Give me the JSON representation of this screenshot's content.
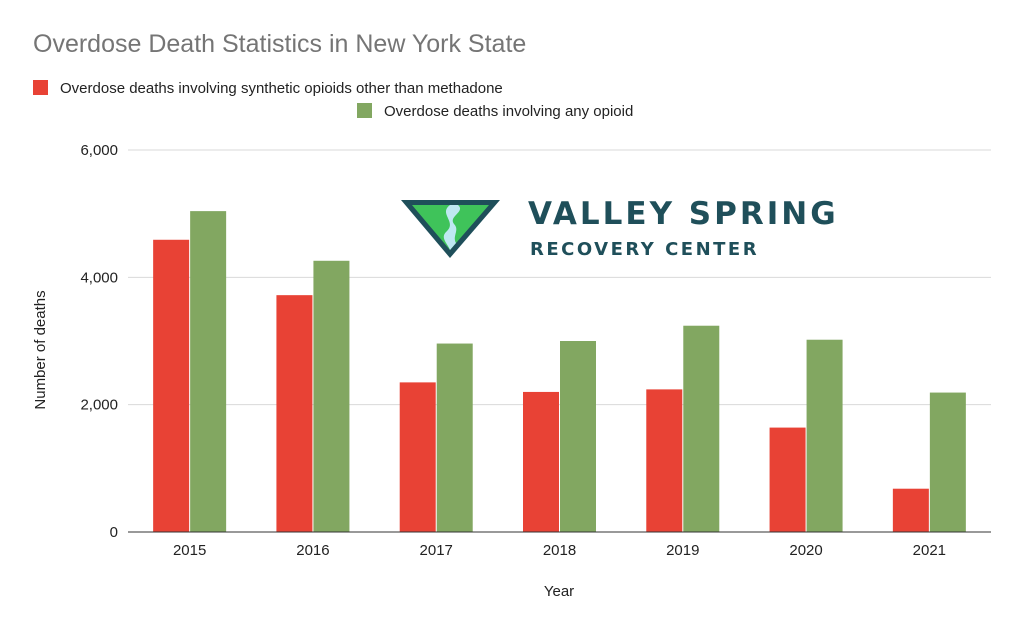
{
  "chart_data": {
    "type": "bar",
    "title": "Overdose Death Statistics in New York State",
    "xlabel": "Year",
    "ylabel": "Number of deaths",
    "categories": [
      "2015",
      "2016",
      "2017",
      "2018",
      "2019",
      "2020",
      "2021"
    ],
    "series": [
      {
        "name": "Overdose deaths involving synthetic opioids other than methadone",
        "color": "#e84235",
        "values": [
          4590,
          3720,
          2350,
          2200,
          2240,
          1640,
          680
        ]
      },
      {
        "name": "Overdose deaths involving any opioid",
        "color": "#82a761",
        "values": [
          5040,
          4260,
          2960,
          3000,
          3240,
          3020,
          2190
        ]
      }
    ],
    "ylim": [
      0,
      6000
    ],
    "yticks": [
      0,
      2000,
      4000,
      6000
    ],
    "ytick_labels": [
      "0",
      "2,000",
      "4,000",
      "6,000"
    ],
    "grid": true,
    "legend_position": "top"
  },
  "watermark": {
    "line1": "VALLEY SPRING",
    "line2": "RECOVERY CENTER"
  }
}
